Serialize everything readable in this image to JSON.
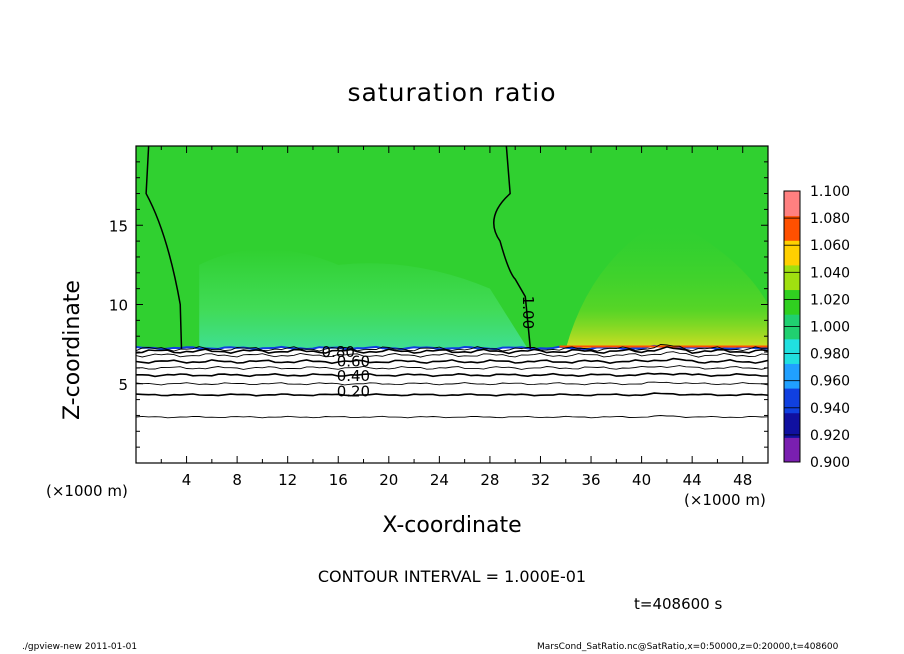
{
  "chart_data": {
    "type": "heatmap",
    "title": "saturation ratio",
    "xlabel": "X-coordinate",
    "ylabel": "Z-coordinate",
    "x_unit": "(×1000 m)",
    "xlim": [
      0,
      50
    ],
    "ylim": [
      0,
      20
    ],
    "x_ticks": [
      4,
      8,
      12,
      16,
      20,
      24,
      28,
      32,
      36,
      40,
      44,
      48
    ],
    "y_ticks": [
      5,
      10,
      15
    ],
    "contour_interval": "CONTOUR INTERVAL = 1.000E-01",
    "contour_labels": [
      {
        "text": "0.80",
        "x": 16.0,
        "z": 7.0
      },
      {
        "text": "0.60",
        "x": 17.2,
        "z": 6.4
      },
      {
        "text": "0.40",
        "x": 17.2,
        "z": 5.5
      },
      {
        "text": "0.20",
        "x": 17.2,
        "z": 4.5
      },
      {
        "text": "1.00",
        "x": 31.0,
        "z": 9.5
      }
    ],
    "contour_levels": [
      {
        "level": 0.1,
        "z": 2.9
      },
      {
        "level": 0.2,
        "z": 4.3
      },
      {
        "level": 0.3,
        "z": 5.0
      },
      {
        "level": 0.4,
        "z": 5.55
      },
      {
        "level": 0.5,
        "z": 6.0
      },
      {
        "level": 0.6,
        "z": 6.4
      },
      {
        "level": 0.7,
        "z": 6.8
      },
      {
        "level": 0.8,
        "z": 7.05
      },
      {
        "level": 0.9,
        "z": 7.2
      }
    ],
    "colorbar": {
      "labels": [
        "1.100",
        "1.080",
        "1.060",
        "1.040",
        "1.020",
        "1.000",
        "0.980",
        "0.960",
        "0.940",
        "0.920",
        "0.900"
      ],
      "min": 0.9,
      "max": 1.1,
      "colors": [
        "#7a1fb0",
        "#1010a0",
        "#1040e0",
        "#20a0ff",
        "#20e0e0",
        "#20d070",
        "#30d020",
        "#a0e010",
        "#ffd000",
        "#ff5000",
        "#ff8080"
      ]
    },
    "field": {
      "background_color": "#30d030",
      "subsaturated_color": "#48e068",
      "supersaturated_color": "#e8e020",
      "below_cloud_color": "#ffffff"
    }
  },
  "time_label": "t=408600 s",
  "footer": {
    "left": "./gpview-new   2011-01-01",
    "right": "MarsCond_SatRatio.nc@SatRatio,x=0:50000,z=0:20000,t=408600"
  }
}
